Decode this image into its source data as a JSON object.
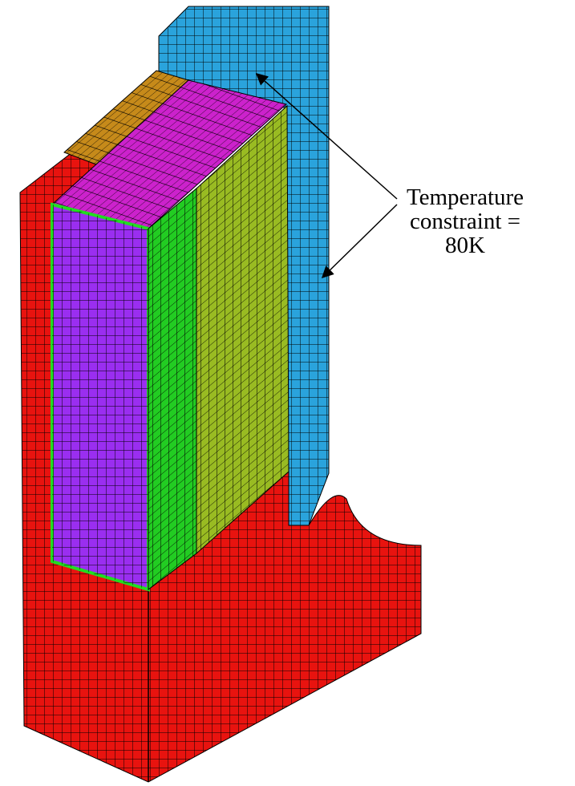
{
  "annotation": {
    "lines": [
      "Temperature",
      "constraint =",
      "80K"
    ]
  }
}
